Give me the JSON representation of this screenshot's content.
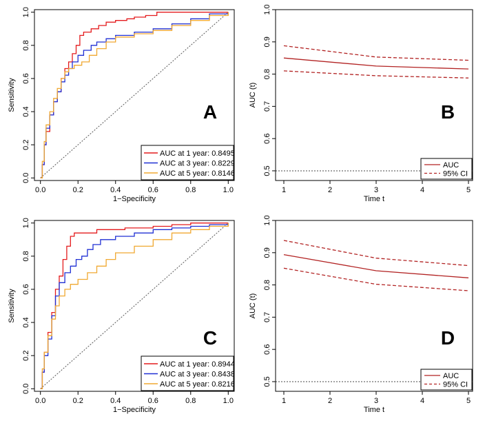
{
  "chart_data": [
    {
      "id": "A",
      "type": "line",
      "panel_label": "A",
      "xlabel": "1−Specificity",
      "ylabel": "Sensitivity",
      "xlim": [
        0,
        1
      ],
      "ylim": [
        0,
        1
      ],
      "xticks": [
        "0.0",
        "0.2",
        "0.4",
        "0.6",
        "0.8",
        "1.0"
      ],
      "yticks": [
        "0.0",
        "0.2",
        "0.4",
        "0.6",
        "0.8",
        "1.0"
      ],
      "legend_position": "bottom-right",
      "reference": "diagonal",
      "series": [
        {
          "name": "AUC at 1 year: 0.8495",
          "color": "#e41a1c",
          "points": [
            [
              0,
              0
            ],
            [
              0.01,
              0.08
            ],
            [
              0.02,
              0.2
            ],
            [
              0.03,
              0.28
            ],
            [
              0.05,
              0.38
            ],
            [
              0.07,
              0.46
            ],
            [
              0.09,
              0.52
            ],
            [
              0.11,
              0.6
            ],
            [
              0.13,
              0.66
            ],
            [
              0.15,
              0.7
            ],
            [
              0.17,
              0.75
            ],
            [
              0.19,
              0.8
            ],
            [
              0.21,
              0.86
            ],
            [
              0.23,
              0.88
            ],
            [
              0.27,
              0.9
            ],
            [
              0.3,
              0.9
            ],
            [
              0.31,
              0.92
            ],
            [
              0.35,
              0.94
            ],
            [
              0.4,
              0.95
            ],
            [
              0.46,
              0.96
            ],
            [
              0.5,
              0.97
            ],
            [
              0.56,
              0.98
            ],
            [
              0.62,
              1.0
            ],
            [
              1.0,
              1.0
            ]
          ]
        },
        {
          "name": "AUC at 3 year: 0.8229",
          "color": "#1f2fd4",
          "points": [
            [
              0,
              0
            ],
            [
              0.01,
              0.08
            ],
            [
              0.02,
              0.2
            ],
            [
              0.03,
              0.3
            ],
            [
              0.05,
              0.38
            ],
            [
              0.07,
              0.46
            ],
            [
              0.09,
              0.52
            ],
            [
              0.11,
              0.58
            ],
            [
              0.13,
              0.62
            ],
            [
              0.15,
              0.66
            ],
            [
              0.17,
              0.7
            ],
            [
              0.2,
              0.74
            ],
            [
              0.23,
              0.77
            ],
            [
              0.27,
              0.8
            ],
            [
              0.3,
              0.82
            ],
            [
              0.35,
              0.84
            ],
            [
              0.4,
              0.86
            ],
            [
              0.5,
              0.88
            ],
            [
              0.6,
              0.9
            ],
            [
              0.7,
              0.93
            ],
            [
              0.8,
              0.96
            ],
            [
              0.9,
              0.99
            ],
            [
              1.0,
              1.0
            ]
          ]
        },
        {
          "name": "AUC at 5 year: 0.8146",
          "color": "#f0a830",
          "points": [
            [
              0,
              0
            ],
            [
              0.01,
              0.1
            ],
            [
              0.02,
              0.22
            ],
            [
              0.03,
              0.32
            ],
            [
              0.05,
              0.4
            ],
            [
              0.07,
              0.48
            ],
            [
              0.09,
              0.54
            ],
            [
              0.11,
              0.6
            ],
            [
              0.13,
              0.64
            ],
            [
              0.15,
              0.66
            ],
            [
              0.18,
              0.68
            ],
            [
              0.22,
              0.7
            ],
            [
              0.26,
              0.74
            ],
            [
              0.3,
              0.78
            ],
            [
              0.35,
              0.82
            ],
            [
              0.4,
              0.85
            ],
            [
              0.5,
              0.87
            ],
            [
              0.6,
              0.89
            ],
            [
              0.7,
              0.92
            ],
            [
              0.8,
              0.95
            ],
            [
              0.9,
              0.98
            ],
            [
              1.0,
              1.0
            ]
          ]
        }
      ]
    },
    {
      "id": "B",
      "type": "line",
      "panel_label": "B",
      "xlabel": "Time t",
      "ylabel": "AUC (t)",
      "xlim": [
        1,
        5
      ],
      "ylim": [
        0.47,
        1.0
      ],
      "xticks": [
        "1",
        "2",
        "3",
        "4",
        "5"
      ],
      "yticks": [
        "0.5",
        "0.6",
        "0.7",
        "0.8",
        "0.9",
        "1.0"
      ],
      "reference_y": 0.5,
      "legend_position": "bottom-right",
      "x": [
        1,
        3,
        5
      ],
      "series": [
        {
          "name": "AUC",
          "style": "solid",
          "color": "#b22222",
          "values": [
            0.85,
            0.825,
            0.816
          ]
        },
        {
          "name": "95% CI upper",
          "style": "dashed",
          "color": "#b22222",
          "values": [
            0.888,
            0.853,
            0.843
          ]
        },
        {
          "name": "95% CI lower",
          "style": "dashed",
          "color": "#b22222",
          "values": [
            0.81,
            0.795,
            0.788
          ]
        }
      ],
      "legend": [
        {
          "label": "AUC",
          "style": "solid"
        },
        {
          "label": "95% CI",
          "style": "dashed"
        }
      ]
    },
    {
      "id": "C",
      "type": "line",
      "panel_label": "C",
      "xlabel": "1−Specificity",
      "ylabel": "Sensitivity",
      "xlim": [
        0,
        1
      ],
      "ylim": [
        0,
        1
      ],
      "xticks": [
        "0.0",
        "0.2",
        "0.4",
        "0.6",
        "0.8",
        "1.0"
      ],
      "yticks": [
        "0.0",
        "0.2",
        "0.4",
        "0.6",
        "0.8",
        "1.0"
      ],
      "legend_position": "bottom-right",
      "reference": "diagonal",
      "series": [
        {
          "name": "AUC at 1 year: 0.8944",
          "color": "#e41a1c",
          "points": [
            [
              0,
              0
            ],
            [
              0.01,
              0.1
            ],
            [
              0.02,
              0.22
            ],
            [
              0.04,
              0.34
            ],
            [
              0.06,
              0.46
            ],
            [
              0.08,
              0.6
            ],
            [
              0.1,
              0.68
            ],
            [
              0.12,
              0.78
            ],
            [
              0.14,
              0.86
            ],
            [
              0.16,
              0.92
            ],
            [
              0.18,
              0.94
            ],
            [
              0.25,
              0.94
            ],
            [
              0.3,
              0.96
            ],
            [
              0.45,
              0.97
            ],
            [
              0.6,
              0.98
            ],
            [
              0.7,
              0.99
            ],
            [
              0.8,
              1.0
            ],
            [
              1.0,
              1.0
            ]
          ]
        },
        {
          "name": "AUC at 3 year: 0.8438",
          "color": "#1f2fd4",
          "points": [
            [
              0,
              0
            ],
            [
              0.01,
              0.1
            ],
            [
              0.02,
              0.2
            ],
            [
              0.04,
              0.3
            ],
            [
              0.06,
              0.44
            ],
            [
              0.08,
              0.56
            ],
            [
              0.1,
              0.64
            ],
            [
              0.13,
              0.7
            ],
            [
              0.16,
              0.74
            ],
            [
              0.19,
              0.78
            ],
            [
              0.22,
              0.8
            ],
            [
              0.25,
              0.84
            ],
            [
              0.28,
              0.87
            ],
            [
              0.32,
              0.9
            ],
            [
              0.4,
              0.92
            ],
            [
              0.5,
              0.94
            ],
            [
              0.6,
              0.96
            ],
            [
              0.7,
              0.97
            ],
            [
              0.8,
              0.98
            ],
            [
              0.9,
              0.99
            ],
            [
              1.0,
              1.0
            ]
          ]
        },
        {
          "name": "AUC at 5 year: 0.8216",
          "color": "#f0a830",
          "points": [
            [
              0,
              0
            ],
            [
              0.01,
              0.12
            ],
            [
              0.02,
              0.22
            ],
            [
              0.04,
              0.32
            ],
            [
              0.06,
              0.42
            ],
            [
              0.08,
              0.5
            ],
            [
              0.1,
              0.56
            ],
            [
              0.13,
              0.6
            ],
            [
              0.16,
              0.63
            ],
            [
              0.2,
              0.66
            ],
            [
              0.25,
              0.7
            ],
            [
              0.3,
              0.74
            ],
            [
              0.35,
              0.78
            ],
            [
              0.4,
              0.82
            ],
            [
              0.5,
              0.86
            ],
            [
              0.6,
              0.9
            ],
            [
              0.7,
              0.94
            ],
            [
              0.8,
              0.96
            ],
            [
              0.9,
              0.98
            ],
            [
              1.0,
              1.0
            ]
          ]
        }
      ]
    },
    {
      "id": "D",
      "type": "line",
      "panel_label": "D",
      "xlabel": "Time t",
      "ylabel": "AUC (t)",
      "xlim": [
        1,
        5
      ],
      "ylim": [
        0.47,
        1.0
      ],
      "xticks": [
        "1",
        "2",
        "3",
        "4",
        "5"
      ],
      "yticks": [
        "0.5",
        "0.6",
        "0.7",
        "0.8",
        "0.9",
        "1.0"
      ],
      "reference_y": 0.5,
      "legend_position": "bottom-right",
      "x": [
        1,
        3,
        5
      ],
      "series": [
        {
          "name": "AUC",
          "style": "solid",
          "color": "#b22222",
          "values": [
            0.894,
            0.844,
            0.822
          ]
        },
        {
          "name": "95% CI upper",
          "style": "dashed",
          "color": "#b22222",
          "values": [
            0.938,
            0.883,
            0.86
          ]
        },
        {
          "name": "95% CI lower",
          "style": "dashed",
          "color": "#b22222",
          "values": [
            0.852,
            0.802,
            0.782
          ]
        }
      ],
      "legend": [
        {
          "label": "AUC",
          "style": "solid"
        },
        {
          "label": "95% CI",
          "style": "dashed"
        }
      ]
    }
  ]
}
